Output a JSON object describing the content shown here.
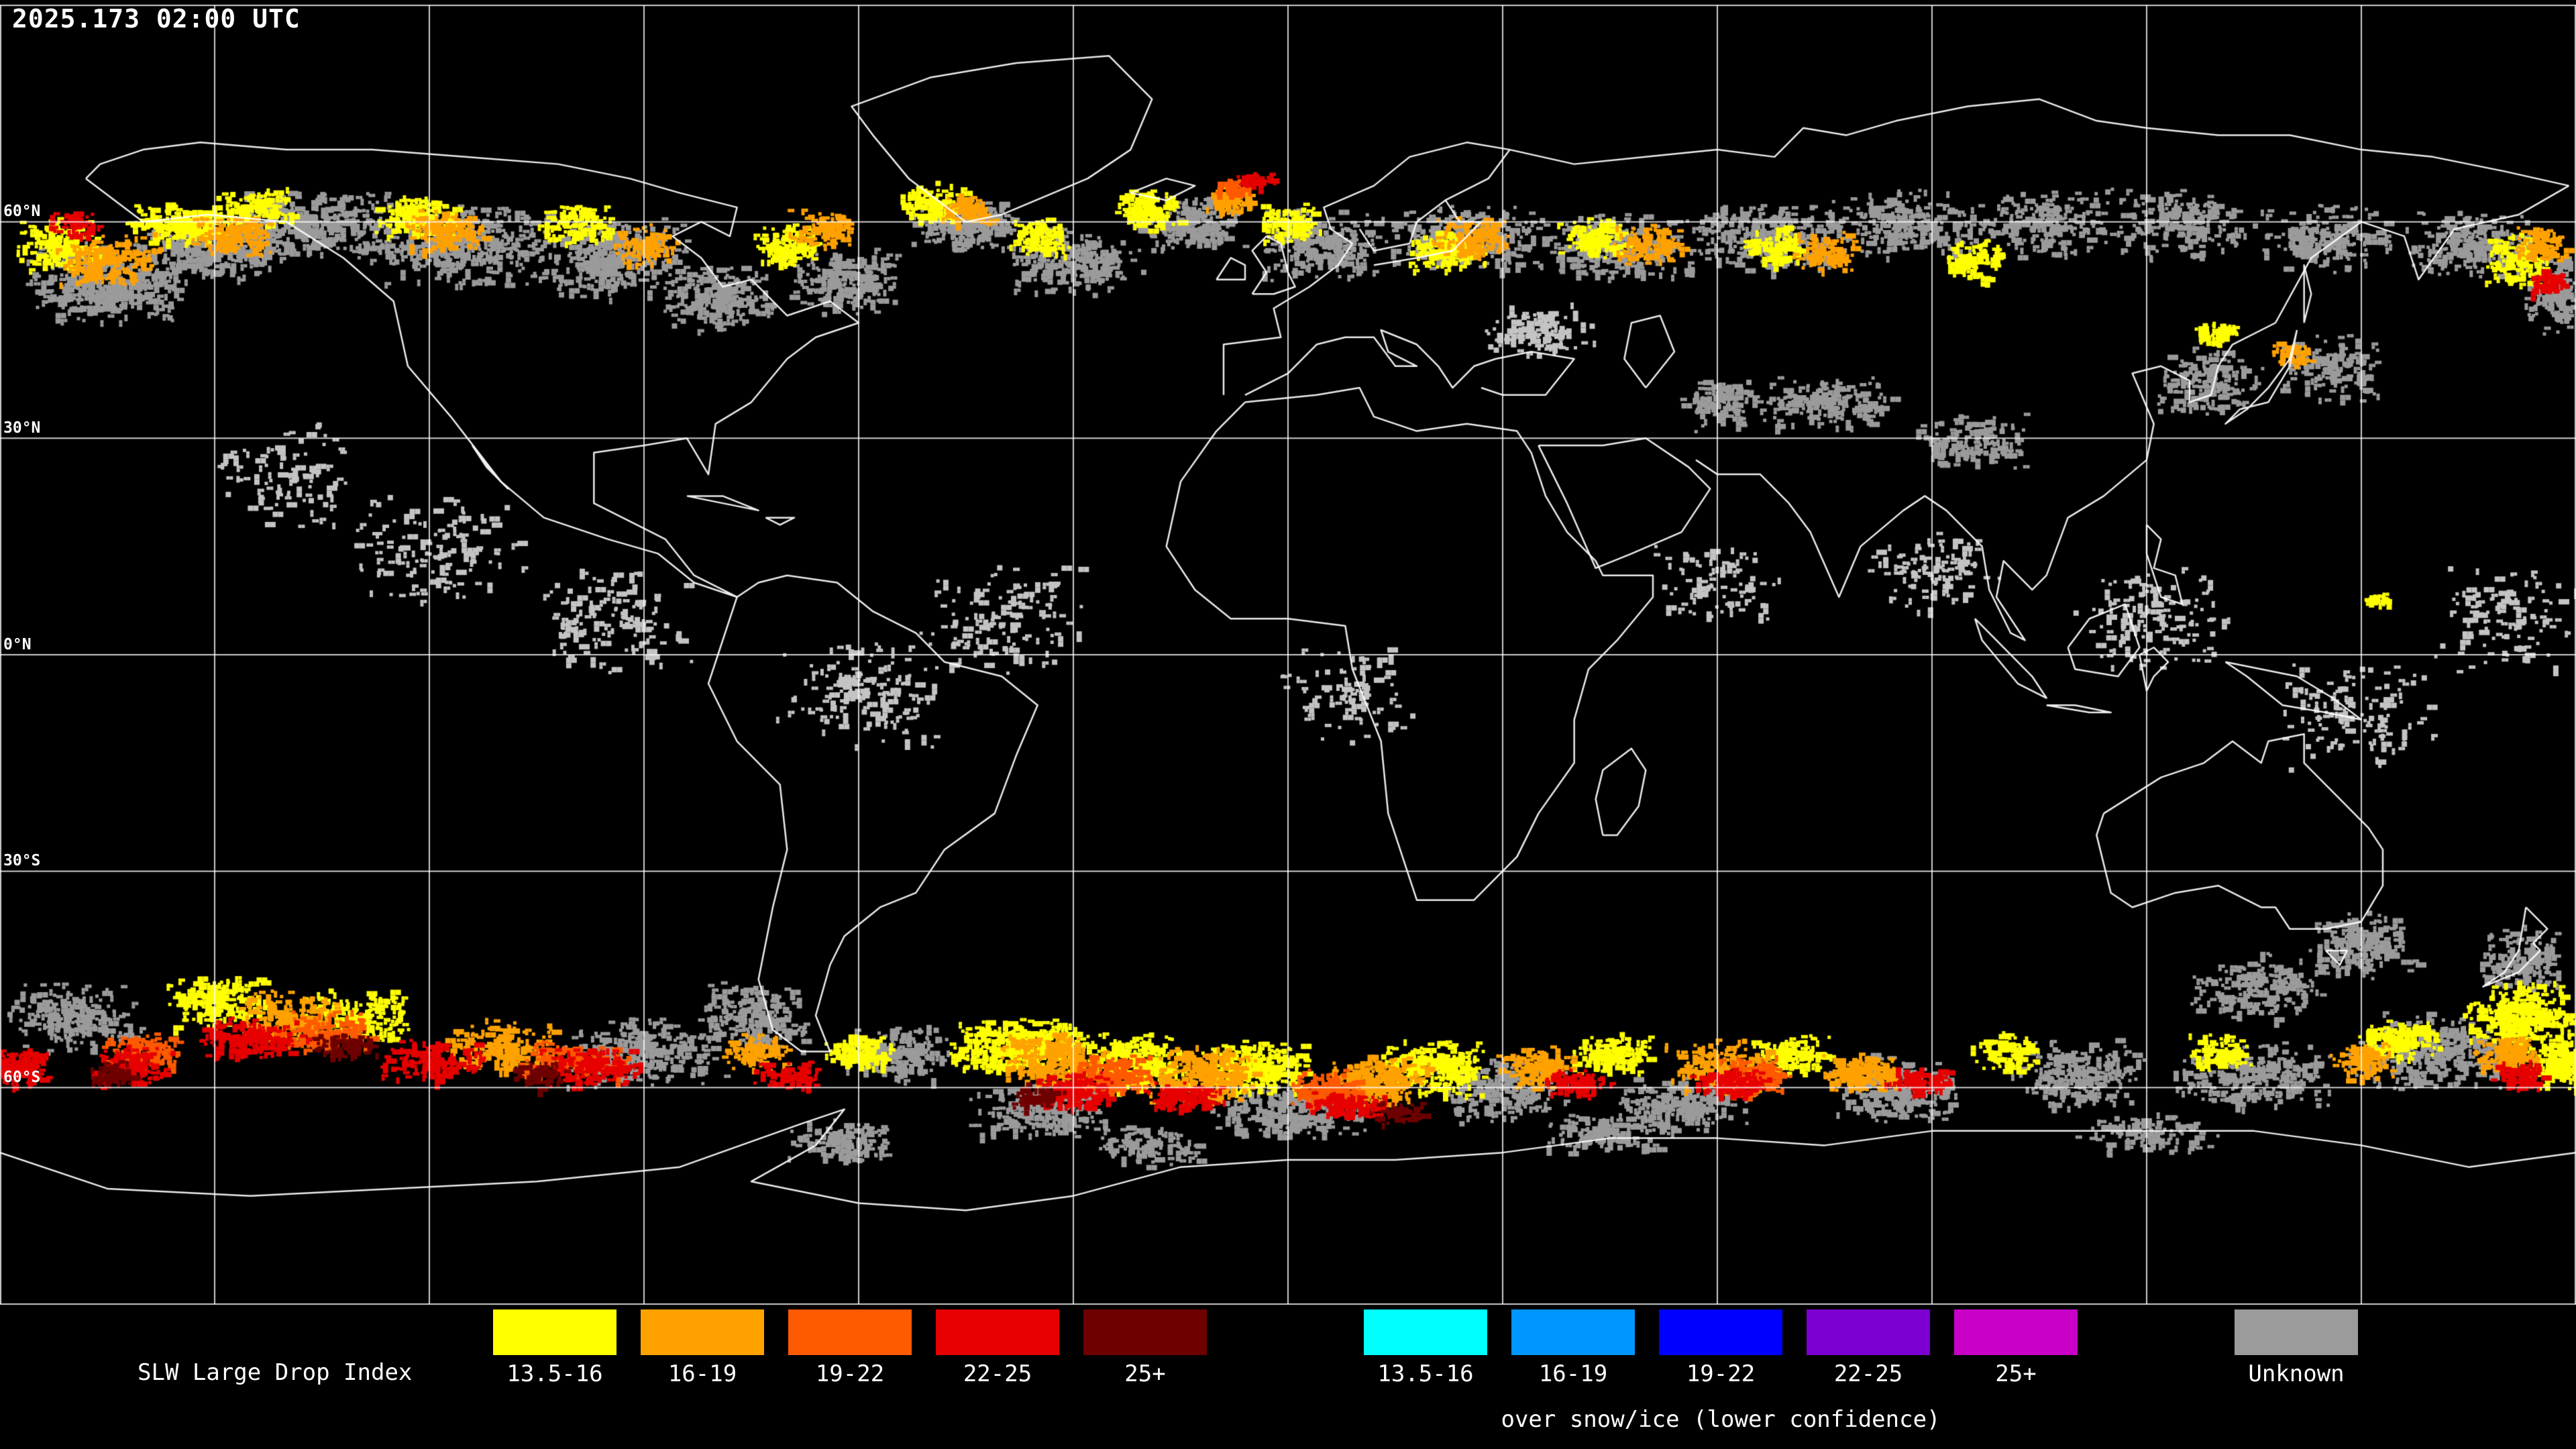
{
  "header": {
    "timestamp": "2025.173 02:00 UTC"
  },
  "map": {
    "lat_labels": [
      "60°N",
      "30°N",
      "0°N",
      "30°S",
      "60°S"
    ]
  },
  "legend": {
    "title": "SLW Large Drop Index",
    "main": {
      "items": [
        {
          "label": "13.5-16",
          "color": "#ffff00"
        },
        {
          "label": "16-19",
          "color": "#ffa200"
        },
        {
          "label": "19-22",
          "color": "#ff5a00"
        },
        {
          "label": "22-25",
          "color": "#e60000"
        },
        {
          "label": "25+",
          "color": "#6e0000"
        }
      ]
    },
    "snow_ice": {
      "caption": "over snow/ice (lower confidence)",
      "items": [
        {
          "label": "13.5-16",
          "color": "#00ffff"
        },
        {
          "label": "16-19",
          "color": "#0096ff"
        },
        {
          "label": "19-22",
          "color": "#0000ff"
        },
        {
          "label": "22-25",
          "color": "#7d00d2"
        },
        {
          "label": "25+",
          "color": "#c800c8"
        }
      ]
    },
    "unknown": {
      "label": "Unknown",
      "color": "#9b9b9b"
    }
  }
}
